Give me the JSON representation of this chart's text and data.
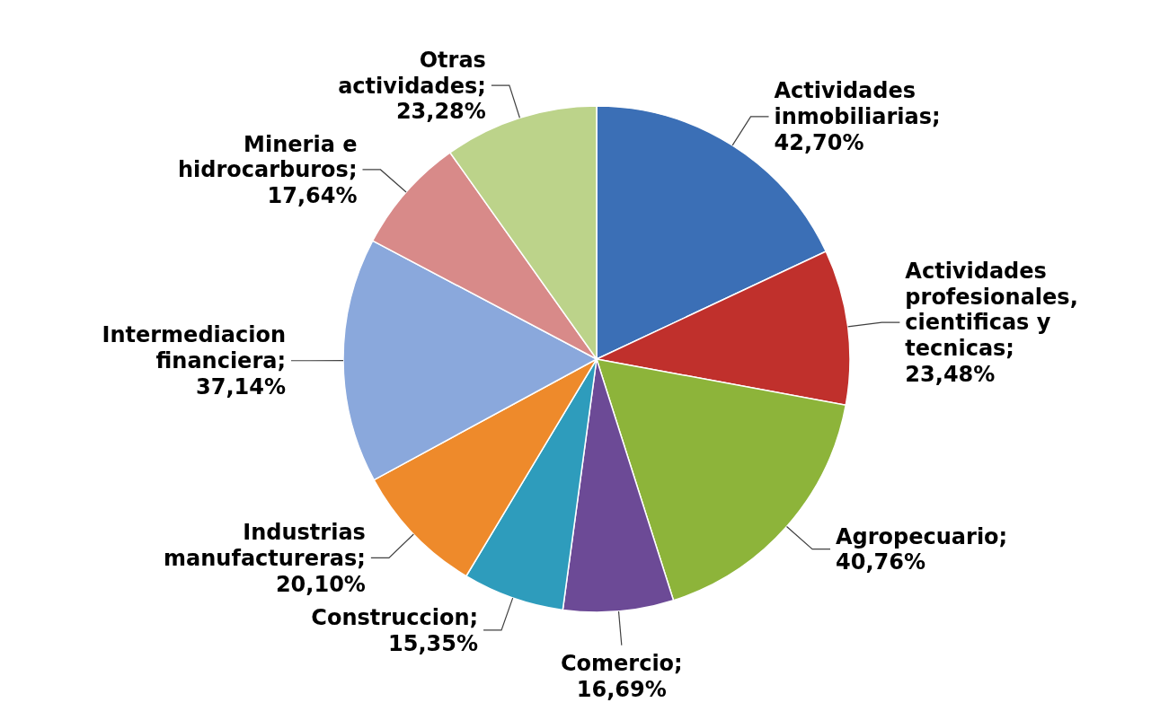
{
  "chart_data": {
    "type": "pie",
    "categories": [
      "Actividades inmobiliarias",
      "Actividades profesionales, cientificas y tecnicas",
      "Agropecuario",
      "Comercio",
      "Construccion",
      "Industrias manufactureras",
      "Intermediacion financiera",
      "Mineria e hidrocarburos",
      "Otras actividades"
    ],
    "values": [
      42.7,
      23.48,
      40.76,
      16.69,
      15.35,
      20.1,
      37.14,
      17.64,
      23.28
    ],
    "value_labels": [
      "; 42,70%",
      "; 23,48%",
      "; 40,76%",
      "; 16,69%",
      "; 15,35%",
      "; 20,10%",
      "; 37,14%",
      "; 17,64%",
      "; 23,28%"
    ],
    "colors": [
      "#3b6fb6",
      "#c0302c",
      "#8db43a",
      "#6c4a96",
      "#2e9cbc",
      "#ee8a2b",
      "#8aa8dc",
      "#d88a89",
      "#bcd38a"
    ]
  }
}
